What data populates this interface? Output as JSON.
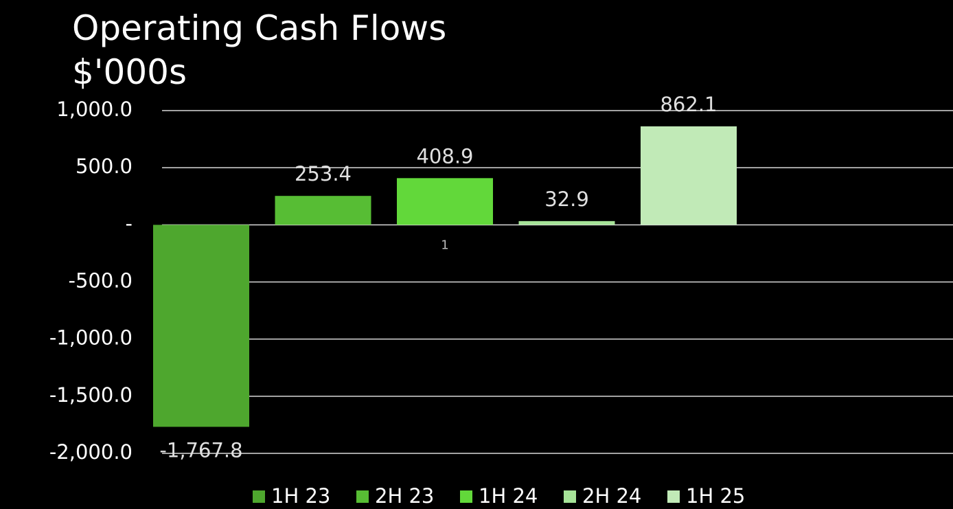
{
  "chart_data": {
    "type": "bar",
    "title": "Operating Cash Flows",
    "subtitle": "$'000s",
    "categories": [
      "1"
    ],
    "series": [
      {
        "name": "1H 23",
        "color": "#4ea72e",
        "values": [
          -1767.8
        ],
        "value_labels": [
          "-1,767.8"
        ]
      },
      {
        "name": "2H 23",
        "color": "#57bd34",
        "values": [
          253.4
        ]
      },
      {
        "name": "1H 24",
        "color": "#62d83a",
        "values": [
          408.9
        ]
      },
      {
        "name": "2H 24",
        "color": "#a6e398",
        "values": [
          32.9
        ]
      },
      {
        "name": "1H 25",
        "color": "#c1eab7",
        "values": [
          862.1
        ]
      }
    ],
    "ylim": [
      -2000,
      1000
    ],
    "yticks": [
      {
        "value": -2000,
        "label": "-2,000.0"
      },
      {
        "value": -1500,
        "label": "-1,500.0"
      },
      {
        "value": -1000,
        "label": "-1,000.0"
      },
      {
        "value": -500,
        "label": "-500.0"
      },
      {
        "value": 0,
        "label": "-"
      },
      {
        "value": 500,
        "label": "500.0"
      },
      {
        "value": 1000,
        "label": "1,000.0"
      }
    ],
    "grid": true,
    "legend": "bottom"
  }
}
